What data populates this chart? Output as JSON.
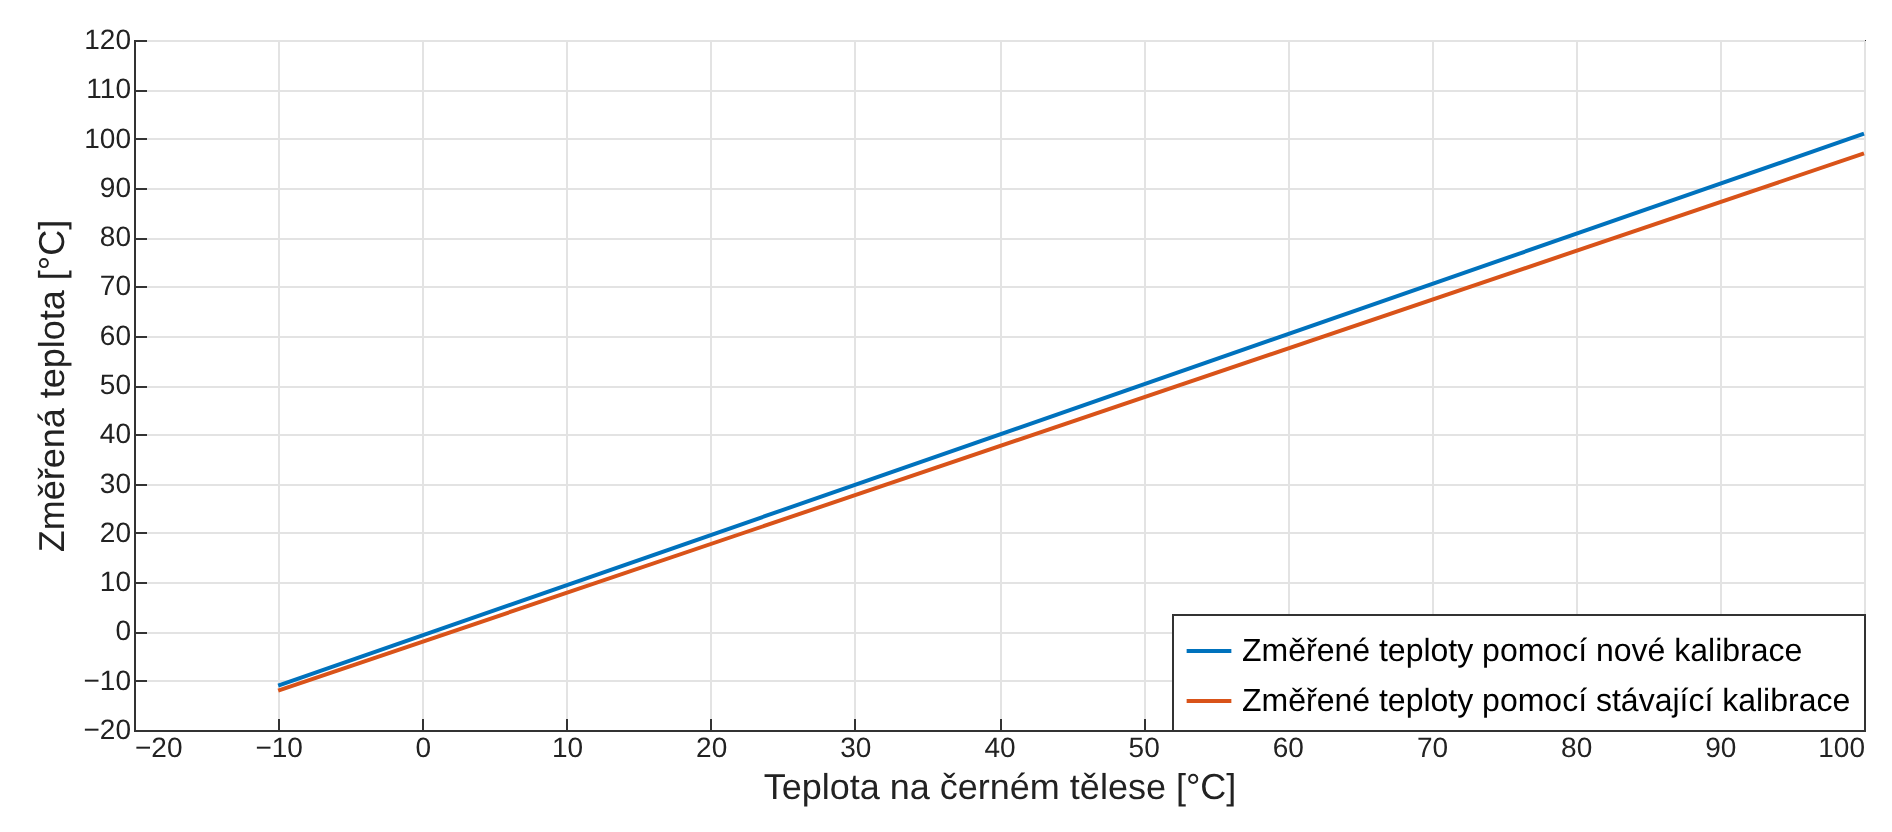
{
  "chart_data": {
    "type": "line",
    "xlabel": "Teplota na černém tělese [°C]",
    "ylabel": "Změřená teplota [°C]",
    "xlim": [
      -20,
      100
    ],
    "xticks": [
      -20,
      -10,
      0,
      10,
      20,
      30,
      40,
      50,
      60,
      70,
      80,
      90,
      100
    ],
    "ylim": [
      -20,
      120
    ],
    "yticks": [
      -20,
      -10,
      0,
      10,
      20,
      30,
      40,
      50,
      60,
      70,
      80,
      90,
      100,
      110,
      120
    ],
    "x": [
      -10,
      100
    ],
    "series": [
      {
        "name": "Změřené teploty pomocí nové kalibrace",
        "color": "#0072bd",
        "values": [
          -11,
          101
        ]
      },
      {
        "name": "Změřené teploty pomocí stávající kalibrace",
        "color": "#d95319",
        "values": [
          -12,
          97
        ]
      }
    ],
    "grid": true,
    "legend": "bottom right",
    "line_style": "solid",
    "marker": "none"
  }
}
